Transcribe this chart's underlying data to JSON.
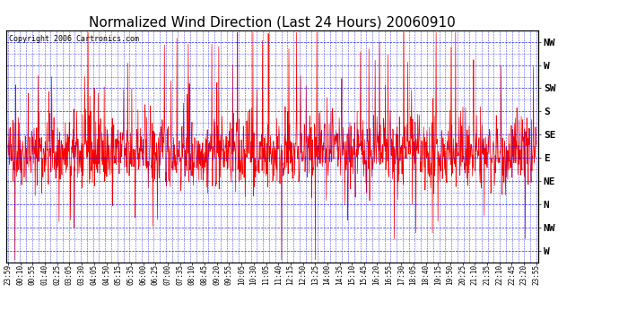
{
  "title": "Normalized Wind Direction (Last 24 Hours) 20060910",
  "copyright": "Copyright 2006 Cartronics.com",
  "ytick_labels": [
    "NW",
    "W",
    "SW",
    "S",
    "SE",
    "E",
    "NE",
    "N",
    "NW",
    "W"
  ],
  "ytick_values": [
    9,
    8,
    7,
    6,
    5,
    4,
    3,
    2,
    1,
    0
  ],
  "ylim": [
    -0.5,
    9.5
  ],
  "line_color": "red",
  "grid_color": "blue",
  "background_color": "white",
  "plot_bg_color": "white",
  "border_color": "black",
  "title_fontsize": 11,
  "copyright_fontsize": 6,
  "tick_label_fontsize": 8,
  "num_points": 1440,
  "seed": 42,
  "xtick_labels": [
    "23:59",
    "00:10",
    "00:55",
    "01:40",
    "02:25",
    "03:05",
    "03:30",
    "04:05",
    "04:50",
    "05:15",
    "05:35",
    "06:00",
    "06:25",
    "07:00",
    "07:35",
    "08:10",
    "08:45",
    "09:20",
    "09:55",
    "10:05",
    "10:30",
    "11:05",
    "11:40",
    "12:15",
    "12:50",
    "13:25",
    "14:00",
    "14:35",
    "15:10",
    "15:45",
    "16:20",
    "16:55",
    "17:30",
    "18:05",
    "18:40",
    "19:15",
    "19:50",
    "20:25",
    "21:10",
    "21:35",
    "22:10",
    "22:45",
    "23:20",
    "23:55"
  ]
}
